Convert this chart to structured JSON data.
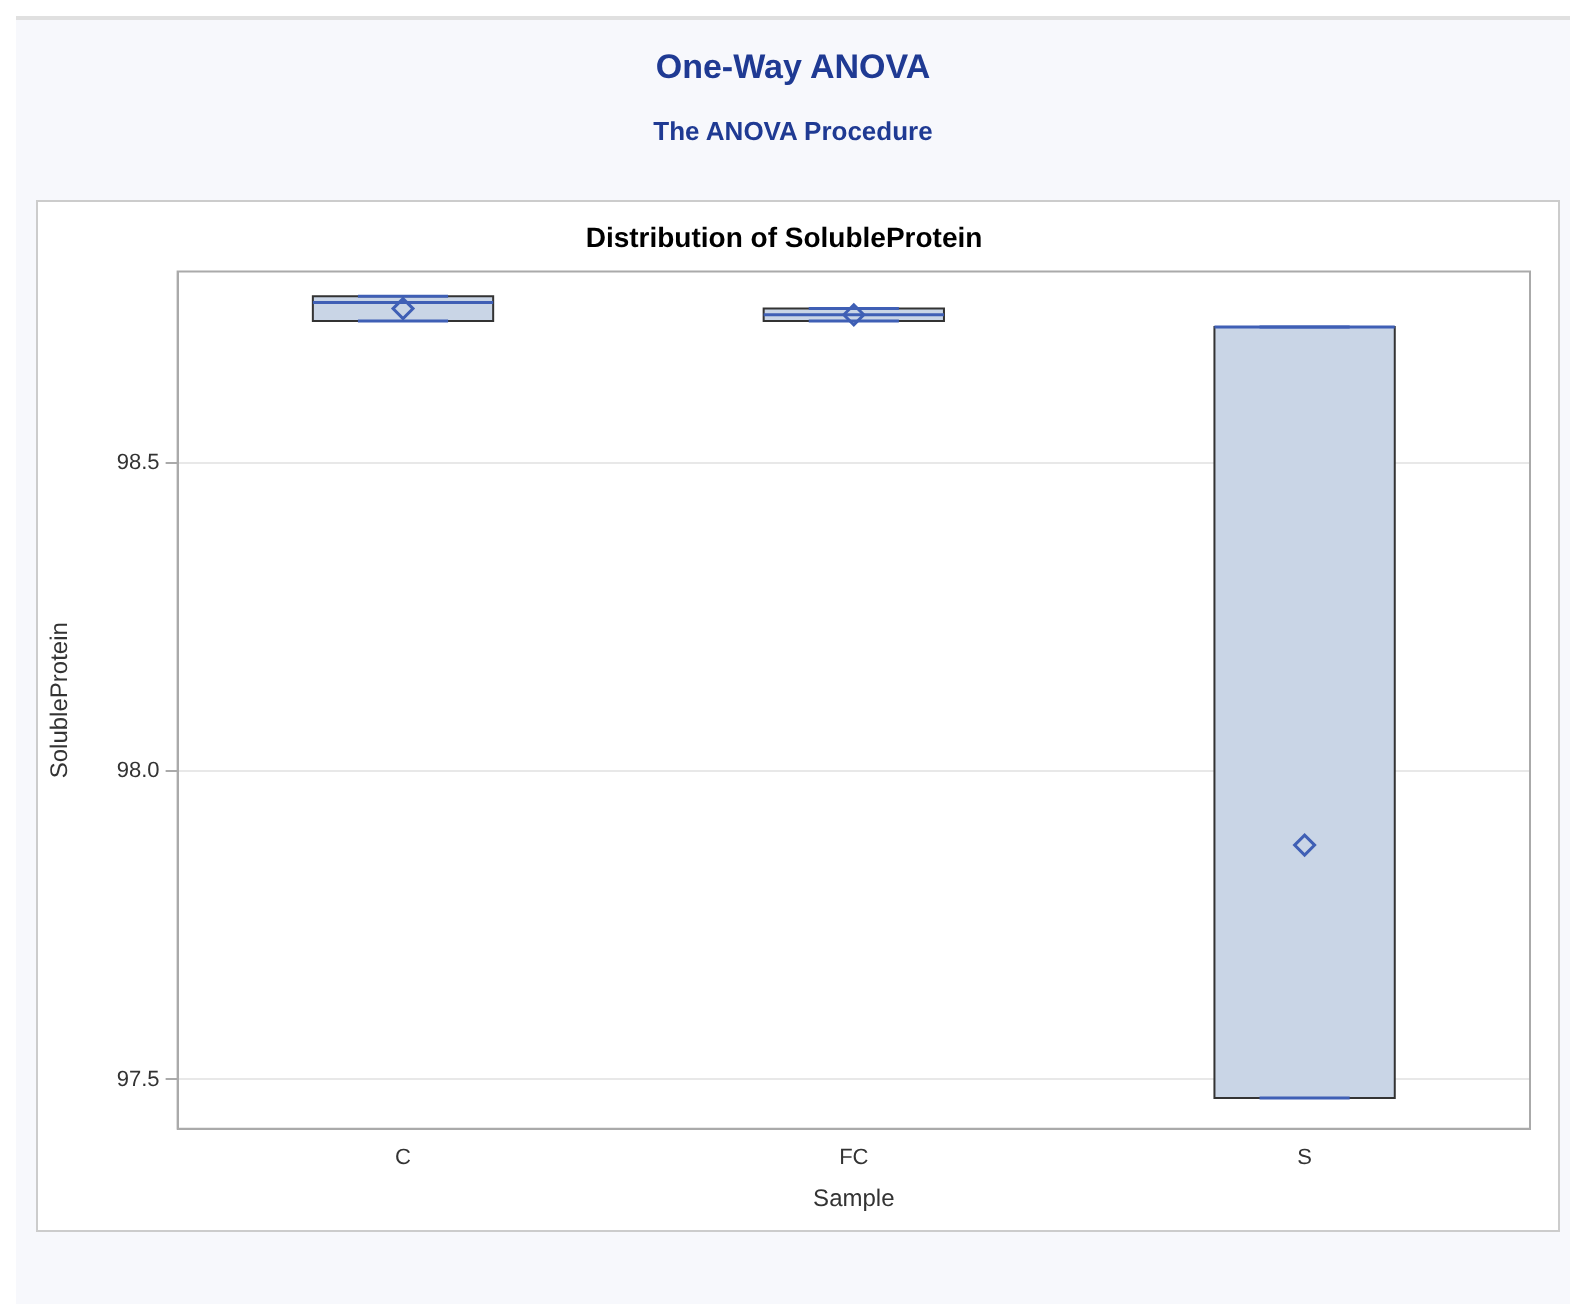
{
  "chart_data": {
    "type": "box",
    "title": "One-Way ANOVA",
    "subtitle": "The ANOVA Procedure",
    "annotations": [
      "Distribution of SolubleProtein"
    ],
    "xlabel": "Sample",
    "ylabel": "SolubleProtein",
    "categories": [
      "C",
      "FC",
      "S"
    ],
    "boxes": [
      {
        "low": 98.73,
        "q1": 98.73,
        "median": 98.76,
        "q3": 98.77,
        "high": 98.77,
        "mean": 98.75
      },
      {
        "low": 98.73,
        "q1": 98.73,
        "median": 98.74,
        "q3": 98.75,
        "high": 98.75,
        "mean": 98.74
      },
      {
        "low": 97.47,
        "q1": 97.47,
        "median": 98.72,
        "q3": 98.72,
        "high": 98.72,
        "mean": 97.88
      }
    ],
    "color": "#c9d5e6",
    "marker": "diamond",
    "ylim": [
      97.42,
      98.81
    ],
    "yticks": [
      {
        "value": 97.5,
        "label": "97.5"
      },
      {
        "value": 98,
        "label": "98.0"
      },
      {
        "value": 98.5,
        "label": "98.5"
      }
    ],
    "grid": "y",
    "legend": false
  }
}
